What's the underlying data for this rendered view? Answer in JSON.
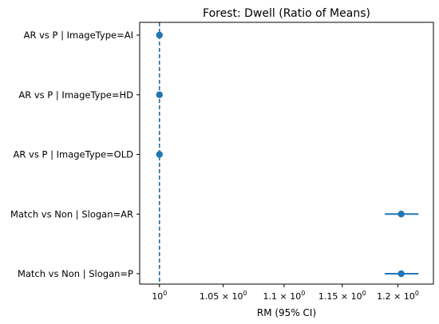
{
  "chart_data": {
    "type": "forest",
    "title": "Forest: Dwell (Ratio of Means)",
    "xlabel": "RM (95% CI)",
    "ylabel": "",
    "x_scale": "log",
    "xlim": [
      0.985,
      1.233
    ],
    "reference_line": 1.0,
    "x_ticks": [
      {
        "value": 1.0,
        "base": "10",
        "exp": "0"
      },
      {
        "value": 1.05,
        "base": "1.05 × 10",
        "exp": "0"
      },
      {
        "value": 1.1,
        "base": "1.1 × 10",
        "exp": "0"
      },
      {
        "value": 1.15,
        "base": "1.15 × 10",
        "exp": "0"
      },
      {
        "value": 1.2,
        "base": "1.2 × 10",
        "exp": "0"
      }
    ],
    "rows": [
      {
        "label": "AR vs P | ImageType=AI",
        "estimate": 1.0,
        "ci": [
          1.0,
          1.0
        ]
      },
      {
        "label": "AR vs P | ImageType=HD",
        "estimate": 1.0,
        "ci": [
          1.0,
          1.0
        ]
      },
      {
        "label": "AR vs P | ImageType=OLD",
        "estimate": 1.0,
        "ci": [
          1.0,
          1.0
        ]
      },
      {
        "label": "Match vs Non | Slogan=AR",
        "estimate": 1.203,
        "ci": [
          1.188,
          1.219
        ]
      },
      {
        "label": "Match vs Non | Slogan=P",
        "estimate": 1.203,
        "ci": [
          1.188,
          1.219
        ]
      }
    ],
    "colors": {
      "marker": "#1f77b4",
      "reference": "#1f6e9e",
      "axes": "#000000"
    }
  }
}
